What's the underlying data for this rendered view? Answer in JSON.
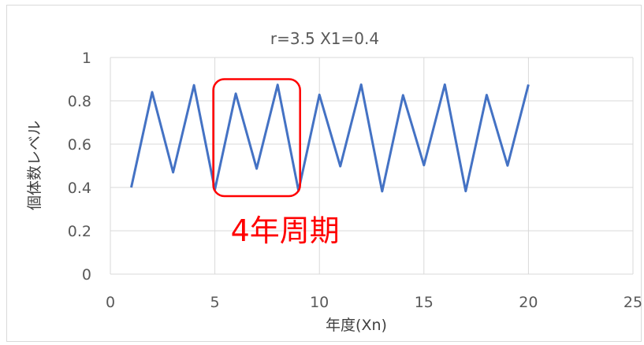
{
  "chart_data": {
    "type": "line",
    "title": "r=3.5  X1=0.4",
    "xlabel": "年度(Xn)",
    "ylabel": "個体数レベル",
    "xlim": [
      0,
      25
    ],
    "ylim": [
      0,
      1
    ],
    "xticks": [
      0,
      5,
      10,
      15,
      20,
      25
    ],
    "yticks": [
      0,
      0.2,
      0.4,
      0.6,
      0.8,
      1
    ],
    "grid": true,
    "legend": "none",
    "series": [
      {
        "color": "#4472c4",
        "x": [
          1,
          2,
          3,
          4,
          5,
          6,
          7,
          8,
          9,
          10,
          11,
          12,
          13,
          14,
          15,
          16,
          17,
          18,
          19,
          20
        ],
        "y": [
          0.4,
          0.84,
          0.47,
          0.872,
          0.39,
          0.833,
          0.487,
          0.874,
          0.385,
          0.828,
          0.498,
          0.875,
          0.382,
          0.826,
          0.503,
          0.875,
          0.383,
          0.827,
          0.501,
          0.875
        ]
      }
    ],
    "annotation": {
      "text": "4年周期",
      "color": "#ff0000",
      "box_x_range": [
        5,
        9
      ],
      "box_y_range": [
        0.36,
        0.9
      ]
    }
  }
}
